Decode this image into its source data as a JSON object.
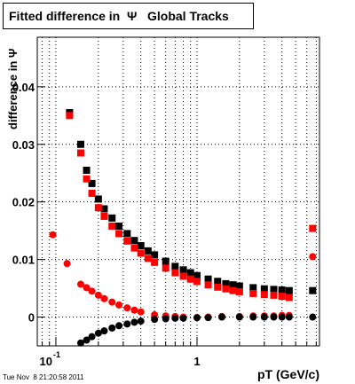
{
  "chart_data": {
    "type": "scatter",
    "title": "Fitted difference in  Ψ   Global Tracks",
    "xlabel": "pT (GeV/c)",
    "ylabel": "difference in Ψ",
    "footer": "Tue Nov  8 21:20:58 2011",
    "xscale": "log",
    "xlim": [
      0.0738,
      7.38
    ],
    "ylim": [
      -0.005,
      0.0486
    ],
    "xticks": [
      {
        "value": 0.1,
        "label": "10",
        "exponent": "-1"
      },
      1
    ],
    "xminorticks": [
      0.08,
      0.09,
      0.2,
      0.3,
      0.4,
      0.5,
      0.6,
      0.7,
      0.8,
      0.9,
      2,
      3,
      4,
      5,
      6,
      7
    ],
    "yticks": [
      0,
      0.01,
      0.02,
      0.03,
      0.04
    ],
    "grid": true,
    "series": [
      {
        "name": "black squares",
        "color": "#000000",
        "marker": "square",
        "x": [
          0.125,
          0.15,
          0.165,
          0.18,
          0.2,
          0.22,
          0.25,
          0.28,
          0.32,
          0.36,
          0.4,
          0.45,
          0.5,
          0.6,
          0.7,
          0.8,
          0.9,
          1.0,
          1.2,
          1.4,
          1.6,
          1.8,
          2.0,
          2.5,
          3.0,
          3.5,
          4.0,
          4.5,
          6.6
        ],
        "values": [
          0.0355,
          0.03,
          0.0255,
          0.0232,
          0.0205,
          0.0188,
          0.0172,
          0.0158,
          0.0145,
          0.0133,
          0.0124,
          0.0115,
          0.0108,
          0.0097,
          0.0088,
          0.0082,
          0.0077,
          0.0072,
          0.0066,
          0.0062,
          0.0058,
          0.0056,
          0.0054,
          0.0051,
          0.0049,
          0.0048,
          0.0047,
          0.0046,
          0.0046
        ]
      },
      {
        "name": "red squares",
        "color": "#ff0000",
        "marker": "square",
        "x": [
          0.125,
          0.15,
          0.165,
          0.18,
          0.2,
          0.22,
          0.25,
          0.28,
          0.32,
          0.36,
          0.4,
          0.45,
          0.5,
          0.6,
          0.7,
          0.8,
          0.9,
          1.0,
          1.2,
          1.4,
          1.6,
          1.8,
          2.0,
          2.5,
          3.0,
          3.5,
          4.0,
          4.5,
          6.6
        ],
        "values": [
          0.035,
          0.0285,
          0.024,
          0.0215,
          0.019,
          0.0175,
          0.0158,
          0.0145,
          0.0132,
          0.012,
          0.0111,
          0.0102,
          0.0095,
          0.0085,
          0.0077,
          0.0071,
          0.0066,
          0.0062,
          0.0056,
          0.0052,
          0.0049,
          0.0046,
          0.0044,
          0.0041,
          0.0039,
          0.0038,
          0.0036,
          0.0034,
          0.0154
        ]
      },
      {
        "name": "red circles",
        "color": "#ff0000",
        "marker": "circle",
        "x": [
          0.095,
          0.12,
          0.15,
          0.165,
          0.18,
          0.2,
          0.22,
          0.25,
          0.28,
          0.32,
          0.36,
          0.4,
          0.5,
          0.6,
          0.7,
          0.8,
          1.0,
          1.2,
          1.5,
          2.0,
          2.5,
          3.0,
          3.5,
          4.0,
          4.5,
          6.6
        ],
        "values": [
          0.0143,
          0.0093,
          0.0057,
          0.0051,
          0.0045,
          0.0038,
          0.0032,
          0.0026,
          0.0021,
          0.0016,
          0.0012,
          0.0009,
          0.0004,
          0.0002,
          0.0001,
          0.0,
          -0.0001,
          0.0,
          0.0001,
          0.0001,
          0.0002,
          0.0002,
          0.0002,
          0.0003,
          0.0003,
          0.0105
        ]
      },
      {
        "name": "black circles",
        "color": "#000000",
        "marker": "circle",
        "x": [
          0.15,
          0.165,
          0.18,
          0.2,
          0.22,
          0.25,
          0.28,
          0.32,
          0.36,
          0.4,
          0.5,
          0.6,
          0.7,
          0.8,
          1.0,
          1.2,
          1.5,
          2.0,
          2.5,
          3.0,
          3.5,
          4.0,
          4.5,
          6.6
        ],
        "values": [
          -0.0045,
          -0.004,
          -0.0034,
          -0.0028,
          -0.0024,
          -0.0019,
          -0.0015,
          -0.0012,
          -0.0009,
          -0.0007,
          -0.0004,
          -0.0003,
          -0.0002,
          -0.0002,
          -0.0001,
          -0.0001,
          0.0,
          0.0,
          0.0,
          0.0,
          0.0,
          0.0,
          0.0,
          0.0
        ]
      }
    ]
  }
}
